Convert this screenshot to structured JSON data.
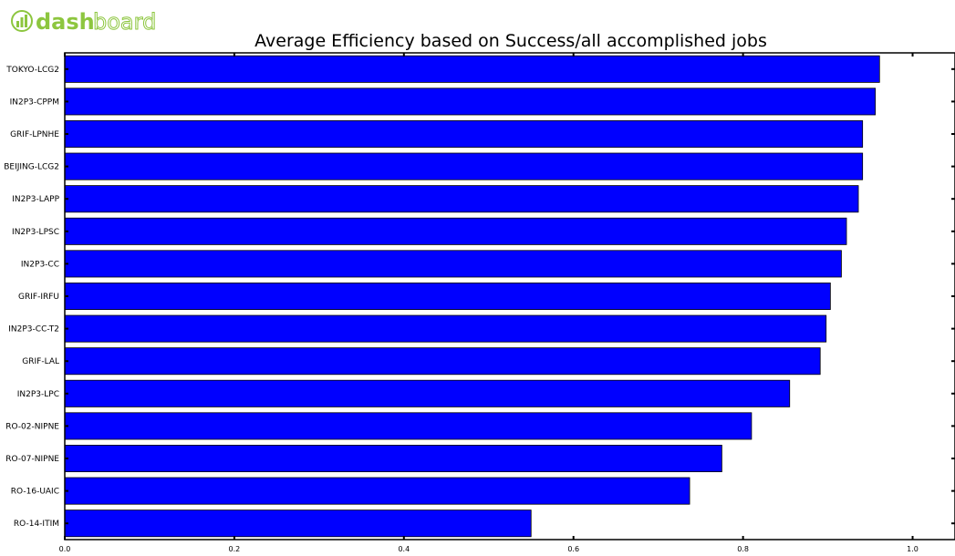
{
  "logo": {
    "text_main": "dash",
    "text_rest": "board"
  },
  "chart_data": {
    "type": "bar",
    "orientation": "horizontal",
    "title": "Average Efficiency based on Success/all accomplished jobs",
    "xlabel": "",
    "ylabel": "",
    "xlim": [
      0.0,
      1.05
    ],
    "xticks": [
      "0.0",
      "0.2",
      "0.4",
      "0.6",
      "0.8",
      "1.0"
    ],
    "xtick_values": [
      0.0,
      0.2,
      0.4,
      0.6,
      0.8,
      1.0
    ],
    "categories": [
      "TOKYO-LCG2",
      "IN2P3-CPPM",
      "GRIF-LPNHE",
      "BEIJING-LCG2",
      "IN2P3-LAPP",
      "IN2P3-LPSC",
      "IN2P3-CC",
      "GRIF-IRFU",
      "IN2P3-CC-T2",
      "GRIF-LAL",
      "IN2P3-LPC",
      "RO-02-NIPNE",
      "RO-07-NIPNE",
      "RO-16-UAIC",
      "RO-14-ITIM"
    ],
    "values": [
      0.961,
      0.956,
      0.941,
      0.941,
      0.936,
      0.922,
      0.916,
      0.903,
      0.898,
      0.891,
      0.855,
      0.81,
      0.775,
      0.737,
      0.55
    ],
    "bar_color": "#0000ff",
    "grid": false,
    "legend": "none"
  }
}
